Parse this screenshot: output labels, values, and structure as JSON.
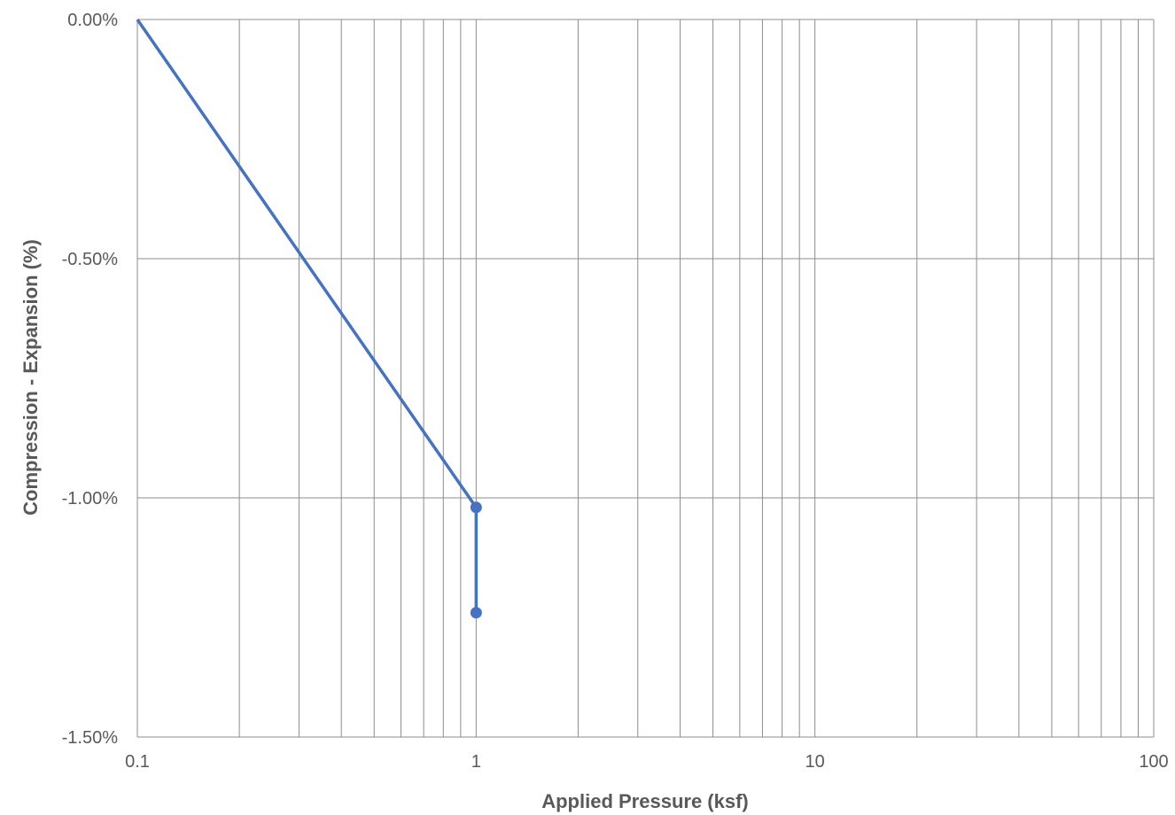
{
  "chart_data": {
    "type": "line",
    "xlabel": "Applied Pressure (ksf)",
    "ylabel": "Compression - Expansion (%)",
    "x_scale": "log",
    "xlim": [
      0.1,
      100
    ],
    "ylim": [
      -1.5,
      0
    ],
    "x_ticks": [
      0.1,
      1,
      10,
      100
    ],
    "x_tick_labels": [
      "0.1",
      "1",
      "10",
      "100"
    ],
    "y_ticks": [
      0,
      -0.5,
      -1,
      -1.5
    ],
    "y_tick_labels": [
      "0.00%",
      "-0.50%",
      "-1.00%",
      "-1.50%"
    ],
    "grid": true,
    "legend": "none",
    "series": [
      {
        "color": "#4472c4",
        "x": [
          0.1,
          1,
          1
        ],
        "y": [
          0,
          -1.02,
          -1.24
        ],
        "markers": [
          false,
          true,
          true
        ]
      }
    ]
  }
}
